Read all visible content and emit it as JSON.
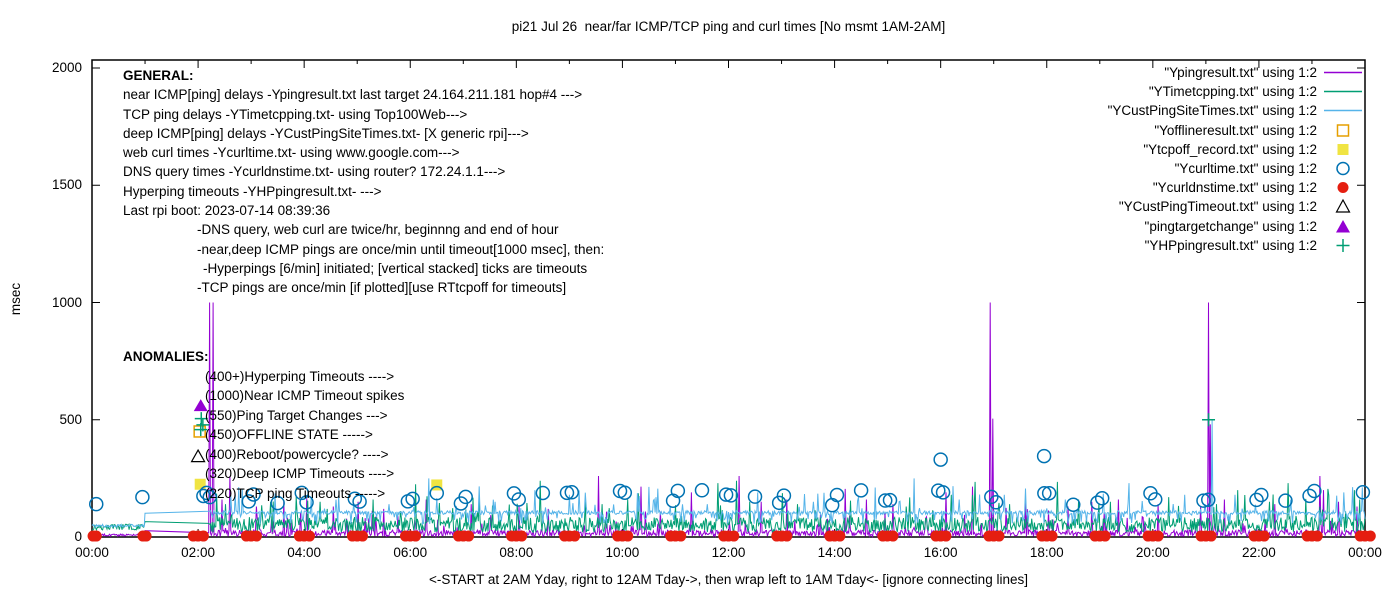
{
  "chart_data": {
    "type": "line",
    "title": "pi21 Jul 26  near/far ICMP/TCP ping and curl times [No msmt 1AM-2AM]",
    "ylabel": "msec",
    "xlabel_note": "<-START at 2AM Yday, right to 12AM Tday->, then wrap left to 1AM Tday<- [ignore connecting lines]",
    "x_tick_labels": [
      "00:00",
      "02:00",
      "04:00",
      "06:00",
      "08:00",
      "10:00",
      "12:00",
      "14:00",
      "16:00",
      "18:00",
      "20:00",
      "22:00",
      "00:00"
    ],
    "x_range_hours": [
      0,
      24
    ],
    "y_ticks": [
      0,
      500,
      1000,
      1500,
      2000
    ],
    "ylim": [
      0,
      2000
    ],
    "grid": false,
    "legend_position": "top-right",
    "measurement_gap_hours": [
      1.0,
      2.2
    ],
    "series": [
      {
        "key": "near_icmp",
        "name": "Ypingresult.txt",
        "style": "line",
        "color": "#9400d3"
      },
      {
        "key": "tcp_ping",
        "name": "YTimetcpping.txt",
        "style": "line",
        "color": "#009e73"
      },
      {
        "key": "deep_icmp",
        "name": "YCustPingSiteTimes.txt",
        "style": "line",
        "color": "#56b4e9"
      },
      {
        "key": "offline",
        "name": "Yofflineresult.txt",
        "style": "square-open",
        "color": "#e69f00"
      },
      {
        "key": "tcpoff",
        "name": "Ytcpoff_record.txt",
        "style": "square-filled",
        "color": "#f0e442"
      },
      {
        "key": "curl",
        "name": "Ycurltime.txt",
        "style": "circle-open",
        "color": "#0072b2"
      },
      {
        "key": "dns",
        "name": "Ycurldnstime.txt",
        "style": "circle-filled",
        "color": "#e51e10"
      },
      {
        "key": "cust_timeout",
        "name": "YCustPingTimeout.txt",
        "style": "triangle-open",
        "color": "#000000"
      },
      {
        "key": "target_chg",
        "name": "pingtargetchange",
        "style": "triangle-filled",
        "color": "#9400d3"
      },
      {
        "key": "hyperping",
        "name": "YHPpingresult.txt",
        "style": "plus",
        "color": "#009e73"
      }
    ],
    "noise": {
      "seed": 20230726,
      "quiet_before_hour": 1.0,
      "near": {
        "base": 2,
        "amp": 28,
        "spike_prob": 0.08,
        "spike_amp": 100
      },
      "tcp": {
        "base": 20,
        "amp": 65,
        "spike_prob": 0.05,
        "spike_amp": 120
      },
      "deep": {
        "base": 96,
        "amp": 16,
        "dip_prob": 0.15,
        "dip_base": 55,
        "dip_amp": 40,
        "spike_prob": 0.05,
        "spike_amp": 120
      },
      "quiet": {
        "near_base": 3,
        "near_amp": 10,
        "tcp_base": 30,
        "tcp_amp": 25,
        "deep_base": 42,
        "deep_amp": 12
      }
    },
    "near_icmp_spikes": [
      [
        2.22,
        1000
      ],
      [
        2.29,
        1000
      ],
      [
        2.45,
        160
      ],
      [
        2.6,
        260
      ],
      [
        3.1,
        130
      ],
      [
        3.62,
        150
      ],
      [
        4.05,
        165
      ],
      [
        4.55,
        130
      ],
      [
        5.02,
        150
      ],
      [
        5.5,
        120
      ],
      [
        6.3,
        160
      ],
      [
        7.15,
        140
      ],
      [
        8.05,
        130
      ],
      [
        8.6,
        120
      ],
      [
        9.55,
        260
      ],
      [
        10.35,
        215
      ],
      [
        11.3,
        190
      ],
      [
        12.2,
        260
      ],
      [
        12.62,
        150
      ],
      [
        13.1,
        160
      ],
      [
        14.2,
        205
      ],
      [
        14.6,
        160
      ],
      [
        15.1,
        140
      ],
      [
        16.1,
        190
      ],
      [
        16.6,
        215
      ],
      [
        16.93,
        1000
      ],
      [
        16.99,
        505
      ],
      [
        17.6,
        160
      ],
      [
        18.4,
        130
      ],
      [
        18.85,
        150
      ],
      [
        19.35,
        160
      ],
      [
        20.1,
        140
      ],
      [
        20.9,
        130
      ],
      [
        21.05,
        1000
      ],
      [
        21.09,
        480
      ],
      [
        21.35,
        160
      ],
      [
        22.3,
        140
      ],
      [
        23.15,
        260
      ],
      [
        23.22,
        200
      ],
      [
        23.5,
        150
      ],
      [
        23.85,
        130
      ]
    ],
    "tcp_spikes": [
      [
        2.35,
        185
      ],
      [
        2.52,
        140
      ],
      [
        3.2,
        135
      ],
      [
        4.3,
        150
      ],
      [
        5.3,
        160
      ],
      [
        6.1,
        225
      ],
      [
        6.55,
        145
      ],
      [
        7.3,
        170
      ],
      [
        8.2,
        145
      ],
      [
        8.45,
        240
      ],
      [
        9.3,
        150
      ],
      [
        10.1,
        160
      ],
      [
        11.0,
        135
      ],
      [
        11.8,
        230
      ],
      [
        12.15,
        240
      ],
      [
        12.4,
        150
      ],
      [
        13.3,
        140
      ],
      [
        14.3,
        155
      ],
      [
        15.35,
        130
      ],
      [
        16.2,
        180
      ],
      [
        16.65,
        235
      ],
      [
        17.3,
        140
      ],
      [
        18.2,
        235
      ],
      [
        18.6,
        160
      ],
      [
        19.2,
        150
      ],
      [
        20.3,
        170
      ],
      [
        21.2,
        140
      ],
      [
        21.6,
        200
      ],
      [
        22.2,
        150
      ],
      [
        22.55,
        230
      ],
      [
        23.3,
        205
      ],
      [
        23.8,
        200
      ],
      [
        23.9,
        160
      ]
    ],
    "deep_icmp_spikes": [
      [
        2.7,
        180
      ],
      [
        4.6,
        160
      ],
      [
        5.6,
        140
      ],
      [
        6.35,
        250
      ],
      [
        7.6,
        150
      ],
      [
        8.35,
        200
      ],
      [
        9.0,
        180
      ],
      [
        10.6,
        160
      ],
      [
        11.6,
        140
      ],
      [
        12.55,
        190
      ],
      [
        13.6,
        150
      ],
      [
        14.45,
        170
      ],
      [
        15.5,
        250
      ],
      [
        16.35,
        160
      ],
      [
        17.2,
        180
      ],
      [
        18.35,
        160
      ],
      [
        19.55,
        230
      ],
      [
        20.6,
        180
      ],
      [
        21.12,
        500
      ],
      [
        21.55,
        180
      ],
      [
        22.6,
        160
      ],
      [
        23.6,
        190
      ]
    ],
    "curl_circles": {
      "value_range_msec": [
        135,
        200
      ],
      "start_singles": [
        [
          0.08,
          140
        ],
        [
          0.95,
          170
        ]
      ],
      "boot_cluster": [
        [
          2.1,
          175
        ],
        [
          2.16,
          188
        ],
        [
          2.22,
          170
        ]
      ],
      "outliers": [
        [
          16.0,
          330
        ],
        [
          17.95,
          345
        ]
      ]
    },
    "dns_dots": {
      "value_msec": 4,
      "start_singles_hours": [
        0.02,
        0.96
      ],
      "hourly_from": 2,
      "hourly_to": 24
    },
    "events": {
      "offline_state": [
        [
          2.03,
          450
        ]
      ],
      "tcpoff_record": [
        [
          2.04,
          225
        ],
        [
          6.5,
          222
        ]
      ],
      "cust_ping_timeout": [
        [
          2.0,
          345
        ]
      ],
      "ping_target_change": [
        [
          2.05,
          560
        ]
      ],
      "hyperping_timeouts": [
        [
          2.06,
          505
        ],
        [
          2.09,
          478
        ],
        [
          2.05,
          458
        ],
        [
          21.05,
          500
        ]
      ]
    }
  },
  "legend": [
    {
      "label": "\"Ypingresult.txt\" using 1:2",
      "style": "line",
      "color": "#9400d3"
    },
    {
      "label": "\"YTimetcpping.txt\" using 1:2",
      "style": "line",
      "color": "#009e73"
    },
    {
      "label": "\"YCustPingSiteTimes.txt\" using 1:2",
      "style": "line",
      "color": "#56b4e9"
    },
    {
      "label": "\"Yofflineresult.txt\" using 1:2",
      "style": "square-open",
      "color": "#e69f00"
    },
    {
      "label": "\"Ytcpoff_record.txt\" using 1:2",
      "style": "square-filled",
      "color": "#f0e442"
    },
    {
      "label": "\"Ycurltime.txt\" using 1:2",
      "style": "circle-open",
      "color": "#0072b2"
    },
    {
      "label": "\"Ycurldnstime.txt\" using 1:2",
      "style": "circle-filled",
      "color": "#e51e10"
    },
    {
      "label": "\"YCustPingTimeout.txt\" using 1:2",
      "style": "triangle-open",
      "color": "#000000"
    },
    {
      "label": "\"pingtargetchange\" using 1:2",
      "style": "triangle-filled",
      "color": "#9400d3"
    },
    {
      "label": "\"YHPpingresult.txt\" using 1:2",
      "style": "plus",
      "color": "#009e73"
    }
  ],
  "annotations": {
    "general": [
      {
        "text": "GENERAL:",
        "indent": 0,
        "bold": true
      },
      {
        "text": "near ICMP[ping] delays -Ypingresult.txt last target 24.164.211.181 hop#4 --->",
        "indent": 0,
        "bold": false
      },
      {
        "text": "TCP ping delays -YTimetcpping.txt- using Top100Web--->",
        "indent": 0,
        "bold": false
      },
      {
        "text": "deep ICMP[ping] delays -YCustPingSiteTimes.txt- [X generic rpi]--->",
        "indent": 0,
        "bold": false
      },
      {
        "text": "web curl times -Ycurltime.txt- using www.google.com--->",
        "indent": 0,
        "bold": false
      },
      {
        "text": "DNS query times -Ycurldnstime.txt- using router? 172.24.1.1--->",
        "indent": 0,
        "bold": false
      },
      {
        "text": "Hyperping timeouts -YHPpingresult.txt- --->",
        "indent": 0,
        "bold": false
      },
      {
        "text": "Last rpi boot: 2023-07-14 08:39:36",
        "indent": 0,
        "bold": false
      },
      {
        "text": "-DNS query, web curl are twice/hr, beginnng and end of hour",
        "indent": 1,
        "bold": false
      },
      {
        "text": "-near,deep ICMP pings are once/min until timeout[1000 msec], then:",
        "indent": 1,
        "bold": false
      },
      {
        "text": "-Hyperpings [6/min] initiated; [vertical stacked] ticks are timeouts",
        "indent": 2,
        "bold": false
      },
      {
        "text": "-TCP pings are once/min [if plotted][use RTtcpoff for timeouts]",
        "indent": 1,
        "bold": false
      }
    ],
    "anomalies": [
      {
        "text": "ANOMALIES:",
        "indent": 0,
        "bold": true
      },
      {
        "text": "(400+)Hyperping Timeouts ---->",
        "indent": 1,
        "bold": false
      },
      {
        "text": "(1000)Near ICMP Timeout spikes",
        "indent": 1,
        "bold": false
      },
      {
        "text": "(550)Ping Target Changes --->",
        "indent": 1,
        "bold": false
      },
      {
        "text": "(450)OFFLINE STATE ----->",
        "indent": 1,
        "bold": false
      },
      {
        "text": "(400)Reboot/powercycle? ---->",
        "indent": 1,
        "bold": false
      },
      {
        "text": "(320)Deep ICMP Timeouts ---->",
        "indent": 1,
        "bold": false
      },
      {
        "text": "(220)TCP ping Timeouts ----->",
        "indent": 1,
        "bold": false
      }
    ]
  }
}
